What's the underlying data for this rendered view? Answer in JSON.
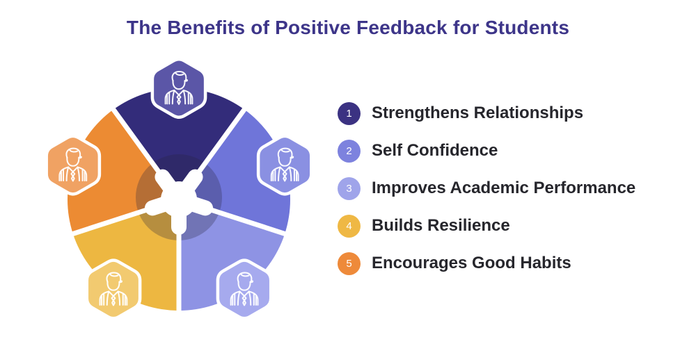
{
  "title": {
    "text": "The Benefits of Positive Feedback for Students",
    "color": "#3d3589"
  },
  "background_color": "#ffffff",
  "diagram": {
    "description": "five-segment circular wheel, each segment with a hexagonal student badge",
    "gap_color": "#ffffff",
    "overlay": {
      "color": "rgba(40,35,60,0.28)",
      "radius": 62
    },
    "icon": "student-icon",
    "segments": [
      {
        "id": "1",
        "label": "Strengthens Relationships",
        "angle": -90,
        "color": "#332c7a",
        "badge_color": "#5b56a7"
      },
      {
        "id": "2",
        "label": "Self Confidence",
        "angle": -18,
        "color": "#6f75d9",
        "badge_color": "#8a90e2"
      },
      {
        "id": "3",
        "label": "Improves Academic Performance",
        "angle": 54,
        "color": "#8e93e4",
        "badge_color": "#a6aaee"
      },
      {
        "id": "4",
        "label": "Builds Resilience",
        "angle": 126,
        "color": "#edb741",
        "badge_color": "#f2ca70"
      },
      {
        "id": "5",
        "label": "Encourages Good Habits",
        "angle": 198,
        "color": "#ec8b33",
        "badge_color": "#f0a263"
      }
    ]
  },
  "legend": {
    "text_color": "#26262c",
    "items": [
      {
        "number": "1",
        "label": "Strengthens Relationships",
        "color": "#3b3282"
      },
      {
        "number": "2",
        "label": "Self Confidence",
        "color": "#7d82de"
      },
      {
        "number": "3",
        "label": "Improves Academic Performance",
        "color": "#9fa4ea"
      },
      {
        "number": "4",
        "label": "Builds Resilience",
        "color": "#efb844"
      },
      {
        "number": "5",
        "label": "Encourages Good Habits",
        "color": "#ee8a3a"
      }
    ]
  }
}
